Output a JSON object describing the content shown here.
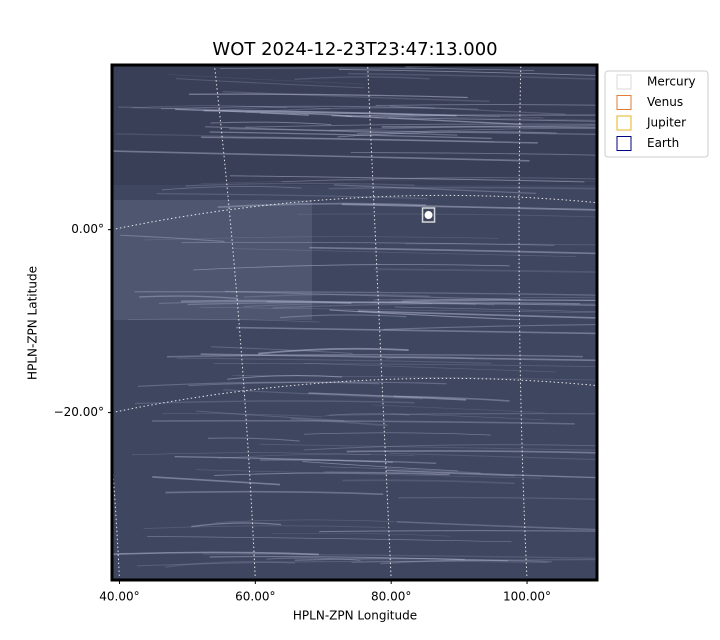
{
  "chart_data": {
    "type": "scatter",
    "title": "WOT 2024-12-23T23:47:13.000",
    "xlabel": "HPLN-ZPN Longitude",
    "ylabel": "HPLN-ZPN Latitude",
    "xlim": [
      38.9,
      110.3
    ],
    "ylim": [
      -38.3,
      18.0
    ],
    "xticks": [
      {
        "value": 40,
        "label": "40.00°"
      },
      {
        "value": 60,
        "label": "60.00°"
      },
      {
        "value": 80,
        "label": "80.00°"
      },
      {
        "value": 100,
        "label": "100.00°"
      }
    ],
    "yticks": [
      {
        "value": 0,
        "label": "0.00°"
      },
      {
        "value": -20,
        "label": "−20.00°"
      }
    ],
    "grid": true,
    "legend": "outside upper right",
    "series": [
      {
        "name": "Mercury",
        "color": "#d9d9d9",
        "x": [
          85.5
        ],
        "y": [
          1.6
        ]
      },
      {
        "name": "Venus",
        "color": "#e07b39",
        "x": [],
        "y": []
      },
      {
        "name": "Jupiter",
        "color": "#e6b020",
        "x": [],
        "y": []
      },
      {
        "name": "Earth",
        "color": "#000080",
        "x": [],
        "y": []
      }
    ]
  }
}
